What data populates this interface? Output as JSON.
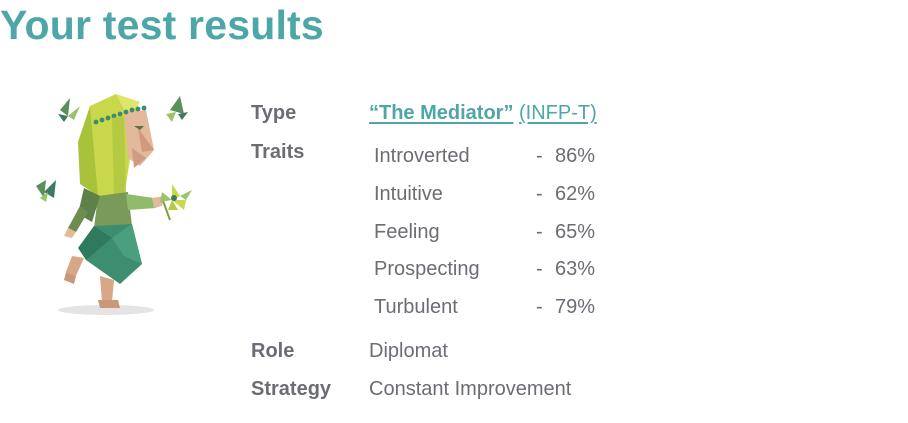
{
  "page": {
    "title": "Your test results"
  },
  "labels": {
    "type": "Type",
    "traits": "Traits",
    "role": "Role",
    "strategy": "Strategy"
  },
  "type": {
    "name": "“The Mediator”",
    "code": "(INFP-T)"
  },
  "traits": [
    {
      "name": "Introverted",
      "dash": "-",
      "percent": "86%"
    },
    {
      "name": "Intuitive",
      "dash": "-",
      "percent": "62%"
    },
    {
      "name": "Feeling",
      "dash": "-",
      "percent": "65%"
    },
    {
      "name": "Prospecting",
      "dash": "-",
      "percent": "63%"
    },
    {
      "name": "Turbulent",
      "dash": "-",
      "percent": "79%"
    }
  ],
  "role": "Diplomat",
  "strategy": "Constant Improvement",
  "illustration": {
    "icon": "mediator-character-illustration"
  },
  "colors": {
    "accent": "#4ea6a8",
    "text": "#6c6c74"
  }
}
